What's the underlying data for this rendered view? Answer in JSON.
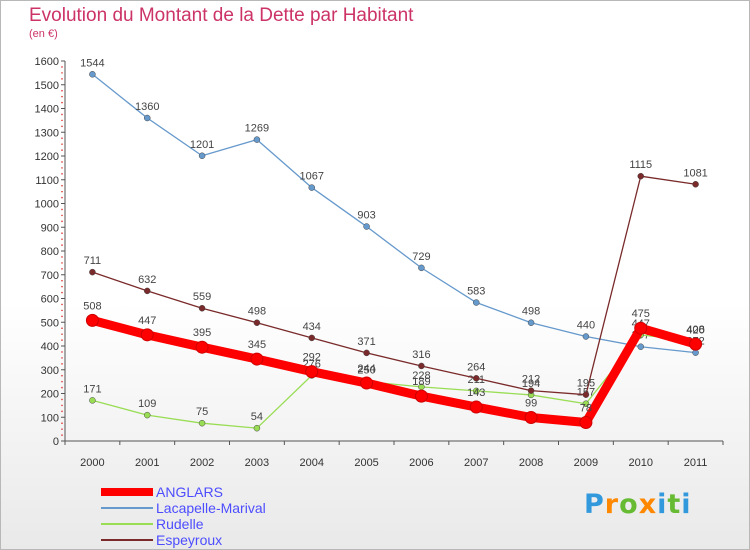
{
  "title": "Evolution du Montant de la Dette par Habitant",
  "subtitle": "(en €)",
  "logo": {
    "text": "Proxiti",
    "letter_colors": [
      "#3399dd",
      "#ff8800",
      "#66bb33",
      "#ff8800",
      "#3399dd",
      "#66bb33",
      "#3399dd"
    ]
  },
  "chart_data": {
    "type": "line",
    "x": [
      "2000",
      "2001",
      "2002",
      "2003",
      "2004",
      "2005",
      "2006",
      "2007",
      "2008",
      "2009",
      "2010",
      "2011"
    ],
    "ylim": [
      0,
      1600
    ],
    "yticks": [
      0,
      100,
      200,
      300,
      400,
      500,
      600,
      700,
      800,
      900,
      1000,
      1100,
      1200,
      1300,
      1400,
      1500,
      1600
    ],
    "grid": false,
    "legend_position": "bottom-left",
    "series": [
      {
        "name": "ANGLARS",
        "color": "#ff0000",
        "emphasis": "thick",
        "values": [
          508,
          447,
          395,
          345,
          292,
          244,
          189,
          143,
          99,
          78,
          475,
          408
        ]
      },
      {
        "name": "Lacapelle-Marival",
        "color": "#6699cc",
        "values": [
          1544,
          1360,
          1201,
          1269,
          1067,
          903,
          729,
          583,
          498,
          440,
          397,
          372
        ]
      },
      {
        "name": "Rudelle",
        "color": "#99dd55",
        "values": [
          171,
          109,
          75,
          54,
          276,
          250,
          228,
          211,
          194,
          157,
          447,
          420
        ]
      },
      {
        "name": "Espeyroux",
        "color": "#7a2a2a",
        "values": [
          711,
          632,
          559,
          498,
          434,
          371,
          316,
          264,
          212,
          195,
          1115,
          1081
        ]
      }
    ]
  }
}
